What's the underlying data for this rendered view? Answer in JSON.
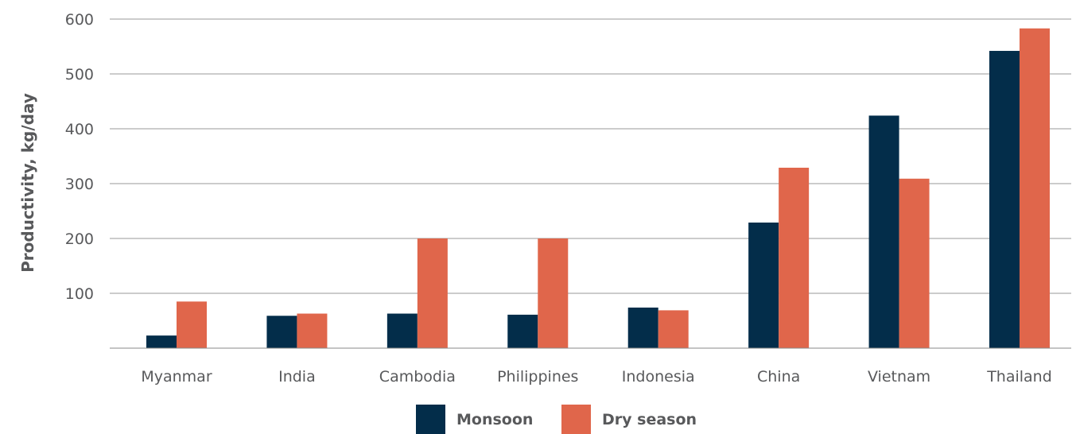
{
  "chart_data": {
    "type": "bar",
    "title": "",
    "xlabel": "",
    "ylabel": "Productivity, kg/day",
    "ylim": [
      0,
      600
    ],
    "y_ticks": [
      100,
      200,
      300,
      400,
      500,
      600
    ],
    "grid": true,
    "legend_position": "bottom-center",
    "categories": [
      "Myanmar",
      "India",
      "Cambodia",
      "Philippines",
      "Indonesia",
      "China",
      "Vietnam",
      "Thailand"
    ],
    "series": [
      {
        "name": "Monsoon",
        "color": "#032d4a",
        "values": [
          23,
          59,
          63,
          61,
          74,
          229,
          424,
          542
        ]
      },
      {
        "name": "Dry season",
        "color": "#e0664b",
        "values": [
          85,
          63,
          200,
          200,
          69,
          329,
          309,
          583
        ]
      }
    ]
  }
}
